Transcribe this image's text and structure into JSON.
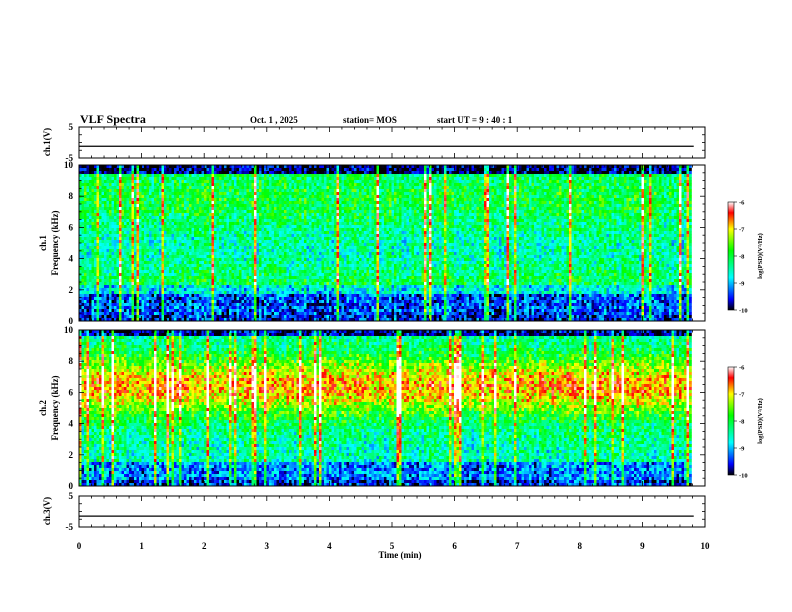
{
  "header": {
    "title": "VLF Spectra",
    "date": "Oct. 1 , 2025",
    "station": "station= MOS",
    "start": "start UT =  9 : 40 : 1"
  },
  "chart_data": [
    {
      "type": "line",
      "name": "ch1-voltage",
      "ylabel": "ch.1(V)",
      "yticks": [
        "5",
        "-5"
      ],
      "ylim": [
        -5,
        5
      ],
      "xlim": [
        0,
        10
      ],
      "level": -1.2
    },
    {
      "type": "heatmap",
      "name": "ch1-spectrogram",
      "ylabel_line1": "ch.1",
      "ylabel_line2": "Frequency (kHz)",
      "ylim": [
        0,
        10
      ],
      "yticks": [
        "0",
        "2",
        "4",
        "6",
        "8",
        "10"
      ],
      "xlim": [
        0,
        10
      ],
      "data_end_min": 9.82,
      "colorbar": {
        "label": "log(PSD)(V²/Hz)",
        "ticks": [
          "-6",
          "-7",
          "-8",
          "-9",
          "-10"
        ],
        "range": [
          -10,
          -6
        ]
      }
    },
    {
      "type": "heatmap",
      "name": "ch2-spectrogram",
      "ylabel_line1": "ch.2",
      "ylabel_line2": "Frequency (kHz)",
      "ylim": [
        0,
        10
      ],
      "yticks": [
        "0",
        "2",
        "4",
        "6",
        "8",
        "10"
      ],
      "xlim": [
        0,
        10
      ],
      "data_end_min": 9.82,
      "colorbar": {
        "label": "log(PSD)(V²/Hz)",
        "ticks": [
          "-6",
          "-7",
          "-8",
          "-9",
          "-10"
        ],
        "range": [
          -10,
          -6
        ]
      }
    },
    {
      "type": "line",
      "name": "ch3-voltage",
      "ylabel": "ch.3(V)",
      "yticks": [
        "5",
        "-5"
      ],
      "ylim": [
        -5,
        5
      ],
      "xlim": [
        0,
        10
      ],
      "level": -1.5,
      "xlabel": "Time (min)",
      "xticks": [
        "0",
        "1",
        "2",
        "3",
        "4",
        "5",
        "6",
        "7",
        "8",
        "9",
        "10"
      ]
    }
  ]
}
